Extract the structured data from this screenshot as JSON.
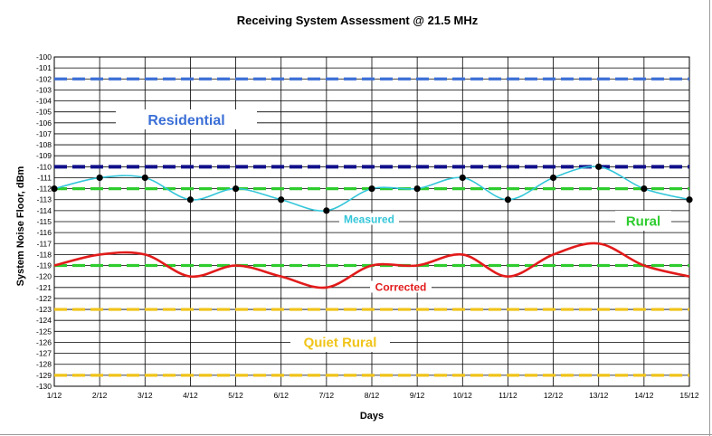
{
  "chart_data": {
    "type": "line",
    "title": "Receiving System Assessment @ 21.5  MHz",
    "xlabel": "Days",
    "ylabel": "System Noise Floor, dBm",
    "ylim": [
      -130,
      -100
    ],
    "yticks": [
      -100,
      -101,
      -102,
      -103,
      -104,
      -105,
      -106,
      -107,
      -108,
      -109,
      -110,
      -111,
      -112,
      -113,
      -114,
      -115,
      -116,
      -117,
      -118,
      -119,
      -120,
      -121,
      -122,
      -123,
      -124,
      -125,
      -126,
      -127,
      -128,
      -129,
      -130
    ],
    "categories": [
      "1/12",
      "2/12",
      "3/12",
      "4/12",
      "5/12",
      "6/12",
      "7/12",
      "8/12",
      "9/12",
      "10/12",
      "11/12",
      "12/12",
      "13/12",
      "14/12",
      "15/12"
    ],
    "grid": true,
    "series": [
      {
        "name": "Measured",
        "color": "#33c6d9",
        "markers": true,
        "smooth": true,
        "values": [
          -112,
          -111,
          -111,
          -113,
          -112,
          -113,
          -114,
          -112,
          -112,
          -111,
          -113,
          -111,
          -110,
          -112,
          -113
        ]
      },
      {
        "name": "Corrected",
        "color": "#e21b1b",
        "markers": false,
        "smooth": true,
        "values": [
          -119,
          -118,
          -118,
          -120,
          -119,
          -120,
          -121,
          -119,
          -119,
          -118,
          -120,
          -118,
          -117,
          -119,
          -120
        ]
      }
    ],
    "reference_lines": [
      {
        "value": -102,
        "color": "#3b6fd6"
      },
      {
        "value": -110,
        "color": "#10108a"
      },
      {
        "value": -112,
        "color": "#2ecc2e"
      },
      {
        "value": -119,
        "color": "#2ecc2e"
      },
      {
        "value": -123,
        "color": "#f0c419"
      },
      {
        "value": -129,
        "color": "#f0c419"
      }
    ],
    "region_labels": [
      {
        "text": "Residential",
        "color": "#3b6fd6"
      },
      {
        "text": "Rural",
        "color": "#2ecc2e"
      },
      {
        "text": "Quiet Rural",
        "color": "#f0c419"
      }
    ]
  }
}
